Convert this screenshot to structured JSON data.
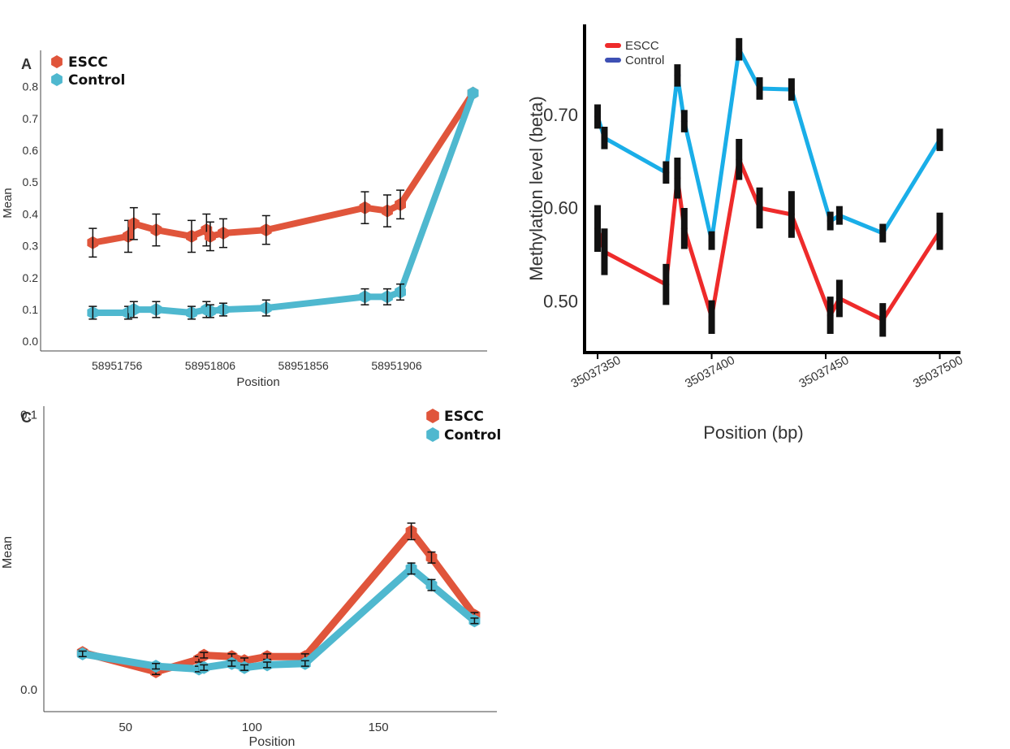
{
  "chart_data": [
    {
      "id": "A",
      "type": "line",
      "panel_label": "A",
      "xlabel": "Position",
      "ylabel": "Mean",
      "xlim": [
        58951725,
        58951945
      ],
      "ylim": [
        -0.03,
        0.83
      ],
      "x_ticks": [
        58951756,
        58951806,
        58951856,
        58951906
      ],
      "y_ticks": [
        0.0,
        0.1,
        0.2,
        0.3,
        0.4,
        0.5,
        0.6,
        0.7,
        0.8
      ],
      "y_tick_labels": [
        "0.0",
        "0.1",
        "0.2",
        "0.3",
        "0.4",
        "0.5",
        "0.6",
        "0.7",
        "0.8"
      ],
      "legend": "top-left",
      "grid": false,
      "series": [
        {
          "name": "ESCC",
          "color": "#E0553B",
          "x": [
            58951743,
            58951762,
            58951765,
            58951777,
            58951796,
            58951804,
            58951806,
            58951813,
            58951836,
            58951889,
            58951901,
            58951908,
            58951947
          ],
          "y": [
            0.31,
            0.33,
            0.37,
            0.35,
            0.33,
            0.35,
            0.33,
            0.34,
            0.35,
            0.42,
            0.41,
            0.43,
            0.78
          ],
          "err": [
            0.045,
            0.05,
            0.05,
            0.05,
            0.05,
            0.05,
            0.045,
            0.045,
            0.045,
            0.05,
            0.05,
            0.045,
            0
          ]
        },
        {
          "name": "Control",
          "color": "#4FB8CF",
          "x": [
            58951743,
            58951762,
            58951765,
            58951777,
            58951796,
            58951804,
            58951806,
            58951813,
            58951836,
            58951889,
            58951901,
            58951908,
            58951947
          ],
          "y": [
            0.09,
            0.09,
            0.1,
            0.1,
            0.09,
            0.1,
            0.095,
            0.1,
            0.105,
            0.14,
            0.14,
            0.155,
            0.78
          ],
          "err": [
            0.02,
            0.02,
            0.025,
            0.025,
            0.02,
            0.025,
            0.02,
            0.02,
            0.025,
            0.025,
            0.025,
            0.025,
            0
          ]
        }
      ]
    },
    {
      "id": "B",
      "type": "line",
      "xlabel": "Position (bp)",
      "ylabel": "Methylation level (beta)",
      "xlim": [
        35037345,
        35037508
      ],
      "ylim": [
        0.445,
        0.795
      ],
      "x_ticks": [
        35037350,
        35037400,
        35037450,
        35037500
      ],
      "y_ticks": [
        0.5,
        0.6,
        0.7
      ],
      "y_tick_labels": [
        "0.50",
        "0.60",
        "0.70"
      ],
      "legend": "top-left",
      "grid": false,
      "series": [
        {
          "name": "ESCC",
          "color": "#EE2B2B",
          "x": [
            35037350,
            35037353,
            35037380,
            35037385,
            35037388,
            35037400,
            35037412,
            35037421,
            35037435,
            35037452,
            35037456,
            35037475,
            35037500
          ],
          "y": [
            0.578,
            0.553,
            0.518,
            0.632,
            0.578,
            0.483,
            0.652,
            0.6,
            0.593,
            0.485,
            0.503,
            0.48,
            0.575
          ],
          "err": [
            0.025,
            0.025,
            0.022,
            0.022,
            0.022,
            0.018,
            0.022,
            0.022,
            0.025,
            0.02,
            0.02,
            0.018,
            0.02
          ]
        },
        {
          "name": "Control",
          "color": "#1AAEE8",
          "x": [
            35037350,
            35037353,
            35037380,
            35037385,
            35037388,
            35037400,
            35037412,
            35037421,
            35037435,
            35037452,
            35037456,
            35037475,
            35037500
          ],
          "y": [
            0.698,
            0.675,
            0.638,
            0.742,
            0.693,
            0.565,
            0.77,
            0.728,
            0.727,
            0.586,
            0.592,
            0.573,
            0.673
          ],
          "err": [
            0.013,
            0.012,
            0.012,
            0.012,
            0.012,
            0.01,
            0.012,
            0.012,
            0.012,
            0.01,
            0.01,
            0.01,
            0.012
          ]
        }
      ]
    },
    {
      "id": "C",
      "type": "line",
      "panel_label": "C",
      "xlabel": "Position",
      "ylabel": "Mean",
      "xlim": [
        18,
        193
      ],
      "ylim": [
        -0.008,
        0.103
      ],
      "x_ticks": [
        50,
        100,
        150
      ],
      "y_ticks": [
        0.0,
        0.1
      ],
      "y_tick_labels": [
        "0.0",
        "0.1"
      ],
      "legend": "top-right",
      "grid": false,
      "series": [
        {
          "name": "ESCC",
          "color": "#E0553B",
          "x": [
            33,
            62,
            79,
            81,
            92,
            97,
            106,
            121,
            163,
            171,
            188
          ],
          "y": [
            0.0135,
            0.0065,
            0.011,
            0.0125,
            0.012,
            0.0105,
            0.012,
            0.012,
            0.0575,
            0.048,
            0.027
          ],
          "err": [
            0.001,
            0.001,
            0.001,
            0.001,
            0.001,
            0.001,
            0.001,
            0.001,
            0.003,
            0.002,
            0.001
          ]
        },
        {
          "name": "Control",
          "color": "#4FB8CF",
          "x": [
            33,
            62,
            79,
            81,
            92,
            97,
            106,
            121,
            163,
            171,
            188
          ],
          "y": [
            0.013,
            0.0085,
            0.0075,
            0.008,
            0.0095,
            0.008,
            0.009,
            0.0095,
            0.044,
            0.038,
            0.025
          ],
          "err": [
            0.001,
            0.001,
            0.001,
            0.001,
            0.001,
            0.001,
            0.001,
            0.001,
            0.002,
            0.002,
            0.001
          ]
        }
      ]
    }
  ]
}
